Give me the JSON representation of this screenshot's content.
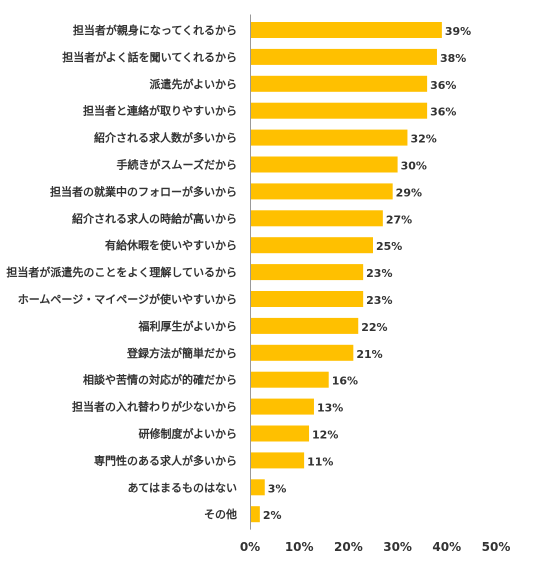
{
  "chart_data": {
    "type": "bar",
    "orientation": "horizontal",
    "title": "",
    "xlabel": "",
    "ylabel": "",
    "categories": [
      "担当者が親身になってくれるから",
      "担当者がよく話を聞いてくれるから",
      "派遣先がよいから",
      "担当者と連絡が取りやすいから",
      "紹介される求人数が多いから",
      "手続きがスムーズだから",
      "担当者の就業中のフォローが多いから",
      "紹介される求人の時給が高いから",
      "有給休暇を使いやすいから",
      "担当者が派遣先のことをよく理解しているから",
      "ホームページ・マイページが使いやすいから",
      "福利厚生がよいから",
      "登録方法が簡単だから",
      "相談や苦情の対応が的確だから",
      "担当者の入れ替わりが少ないから",
      "研修制度がよいから",
      "専門性のある求人が多いから",
      "あてはまるものはない",
      "その他"
    ],
    "values": [
      39,
      38,
      36,
      36,
      32,
      30,
      29,
      27,
      25,
      23,
      23,
      22,
      21,
      16,
      13,
      12,
      11,
      3,
      2
    ],
    "value_labels": [
      "39%",
      "38%",
      "36%",
      "36%",
      "32%",
      "30%",
      "29%",
      "27%",
      "25%",
      "23%",
      "23%",
      "22%",
      "21%",
      "16%",
      "13%",
      "12%",
      "11%",
      "3%",
      "2%"
    ],
    "xlim": [
      0,
      50
    ],
    "xticks": [
      0,
      10,
      20,
      30,
      40,
      50
    ],
    "xtick_labels": [
      "0%",
      "10%",
      "20%",
      "30%",
      "40%",
      "50%"
    ],
    "grid": false,
    "legend": "none",
    "colors": {
      "bar": "#FFC000",
      "axis": "#999999",
      "text": "#333333"
    }
  }
}
